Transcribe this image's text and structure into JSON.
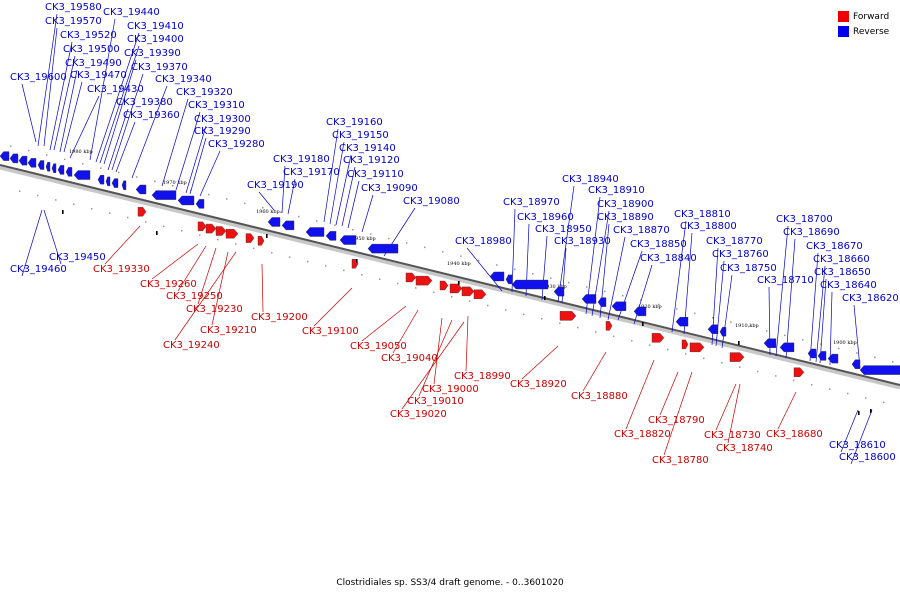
{
  "caption": "Clostridiales sp. SS3/4 draft genome. - 0..3601020",
  "legend": [
    {
      "label": "Forward",
      "color": "#ee0000"
    },
    {
      "label": "Reverse",
      "color": "#0000ee"
    }
  ],
  "ticks": [
    "1980 kbp",
    "1970 kbp",
    "1960 kbp",
    "1950 kbp",
    "1940 kbp",
    "1930 kbp",
    "1920 kbp",
    "1910 kbp",
    "1900 kbp"
  ],
  "reverse_genes": [
    "CK3_19600",
    "CK3_19580",
    "CK3_19570",
    "CK3_19520",
    "CK3_19500",
    "CK3_19490",
    "CK3_19470",
    "CK3_19440",
    "CK3_19430",
    "CK3_19410",
    "CK3_19400",
    "CK3_19390",
    "CK3_19380",
    "CK3_19370",
    "CK3_19360",
    "CK3_19340",
    "CK3_19320",
    "CK3_19310",
    "CK3_19300",
    "CK3_19290",
    "CK3_19280",
    "CK3_19190",
    "CK3_19180",
    "CK3_19170",
    "CK3_19160",
    "CK3_19150",
    "CK3_19140",
    "CK3_19120",
    "CK3_19110",
    "CK3_19090",
    "CK3_19080",
    "CK3_18980",
    "CK3_18970",
    "CK3_18960",
    "CK3_18950",
    "CK3_18940",
    "CK3_18930",
    "CK3_18910",
    "CK3_18900",
    "CK3_18890",
    "CK3_18870",
    "CK3_18850",
    "CK3_18840",
    "CK3_18810",
    "CK3_18800",
    "CK3_18770",
    "CK3_18760",
    "CK3_18750",
    "CK3_18710",
    "CK3_18700",
    "CK3_18690",
    "CK3_18670",
    "CK3_18660",
    "CK3_18650",
    "CK3_18640",
    "CK3_18620",
    "CK3_19450",
    "CK3_19460",
    "CK3_18610",
    "CK3_18600"
  ],
  "forward_genes": [
    "CK3_19330",
    "CK3_19260",
    "CK3_19250",
    "CK3_19230",
    "CK3_19210",
    "CK3_19240",
    "CK3_19200",
    "CK3_19100",
    "CK3_19050",
    "CK3_19040",
    "CK3_18990",
    "CK3_19000",
    "CK3_19010",
    "CK3_19020",
    "CK3_18920",
    "CK3_18880",
    "CK3_18790",
    "CK3_18820",
    "CK3_18780",
    "CK3_18730",
    "CK3_18740",
    "CK3_18680"
  ]
}
